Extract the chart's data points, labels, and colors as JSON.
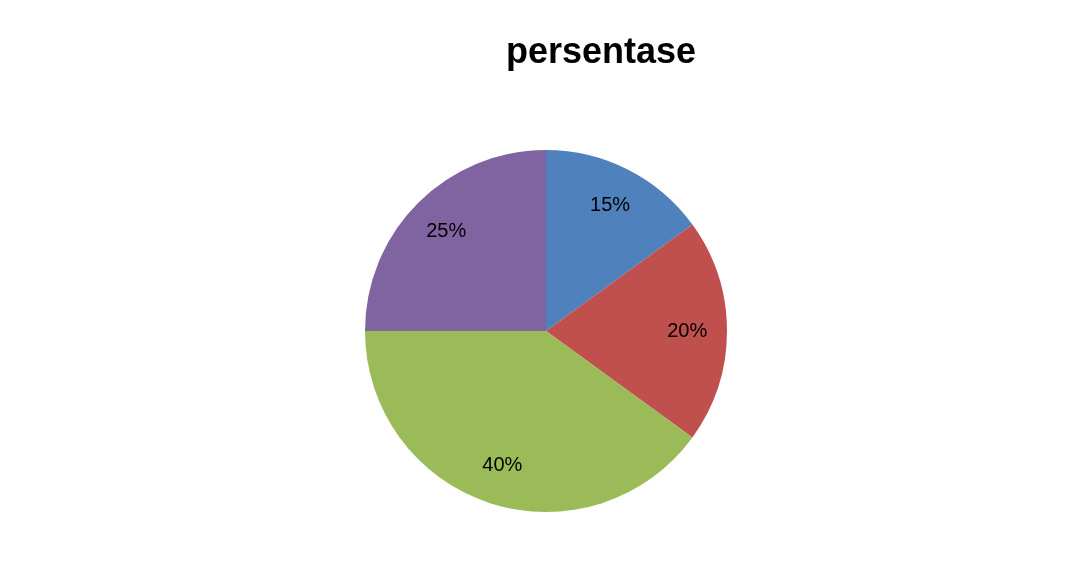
{
  "chart_data": {
    "type": "pie",
    "title": "persentase",
    "categories": [
      null,
      null,
      null,
      null
    ],
    "values": [
      15,
      20,
      40,
      25
    ],
    "colors": [
      "#4f81bd",
      "#c0504d",
      "#9bbb59",
      "#8064a2"
    ],
    "value_labels": [
      "15%",
      "20%",
      "40%",
      "25%"
    ],
    "legend": false
  }
}
